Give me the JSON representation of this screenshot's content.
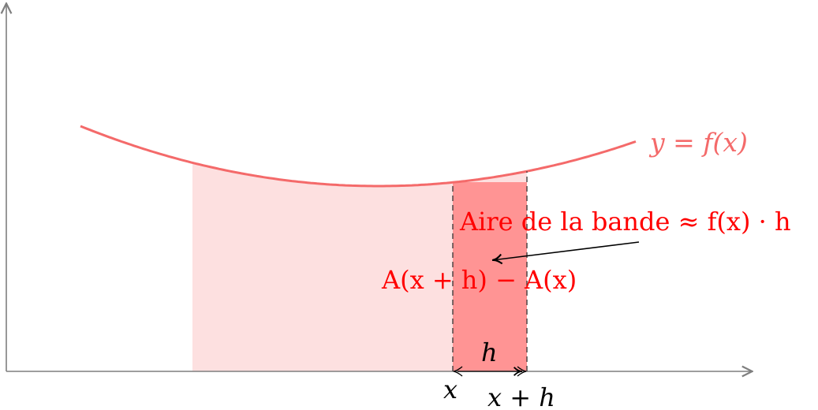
{
  "diagram": {
    "curve_label": "y = f(x)",
    "strip_area_label": "Aire de la bande ≈ f(x) · h",
    "difference_label": "A(x + h) − A(x)",
    "width_label": "h",
    "left_tick_label": "x",
    "right_tick_label": "x + h"
  },
  "colors": {
    "curve": "#f46a6a",
    "curve_label": "#f46a6a",
    "area_fill": "#fde0e0",
    "strip_fill": "#ff9494",
    "annotation_text": "#ff0000",
    "axes": "#7f7f7f",
    "text": "#000000"
  }
}
